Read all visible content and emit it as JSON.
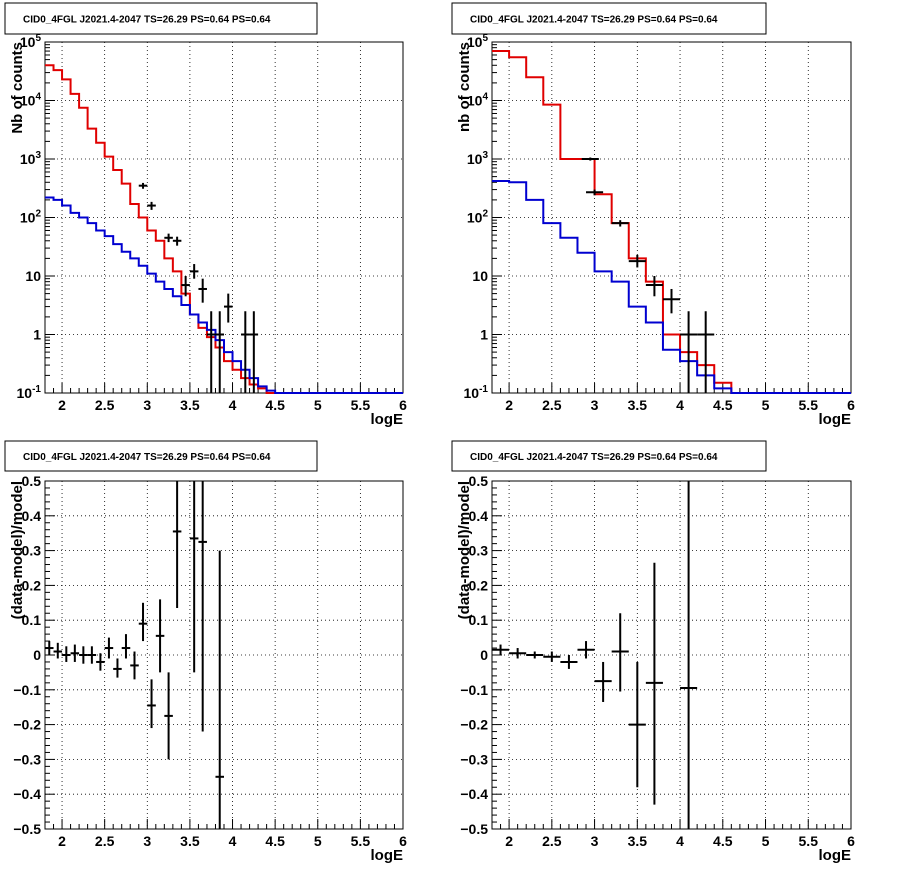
{
  "colors": {
    "data": "#000000",
    "total_model": "#e00000",
    "component_model": "#0000d0",
    "grid": "#000000"
  },
  "chart_data": [
    {
      "type": "line",
      "panel": "top-left",
      "title": "CID0_4FGL J2021.4-2047 TS=26.29 PS=0.64 PS=0.64",
      "xlabel": "logE",
      "ylabel": "Nb of counts",
      "xlim": [
        1.8,
        6.0
      ],
      "ylim": [
        0.1,
        100000
      ],
      "ylog": true,
      "grid": true,
      "xticks": [
        {
          "v": 2,
          "t": "2"
        },
        {
          "v": 2.5,
          "t": "2.5"
        },
        {
          "v": 3,
          "t": "3"
        },
        {
          "v": 3.5,
          "t": "3.5"
        },
        {
          "v": 4,
          "t": "4"
        },
        {
          "v": 4.5,
          "t": "4.5"
        },
        {
          "v": 5,
          "t": "5"
        },
        {
          "v": 5.5,
          "t": "5.5"
        },
        {
          "v": 6,
          "t": "6"
        }
      ],
      "yticks": [
        {
          "v": 0.1,
          "t": "10^-1"
        },
        {
          "v": 1,
          "t": "1"
        },
        {
          "v": 10,
          "t": "10"
        },
        {
          "v": 100,
          "t": "10^2"
        },
        {
          "v": 1000,
          "t": "10^3"
        },
        {
          "v": 10000,
          "t": "10^4"
        },
        {
          "v": 100000,
          "t": "10^5"
        }
      ],
      "step_series": [
        {
          "color": "#e00000",
          "edges": [
            1.8,
            1.9,
            2.0,
            2.1,
            2.2,
            2.3,
            2.4,
            2.5,
            2.6,
            2.7,
            2.8,
            2.9,
            3.0,
            3.1,
            3.2,
            3.3,
            3.4,
            3.5,
            3.6,
            3.7,
            3.8,
            3.9,
            4.0,
            4.1,
            4.2,
            4.3,
            4.4,
            4.5,
            6.0
          ],
          "values": [
            40000,
            33000,
            23000,
            13000,
            7500,
            3300,
            1900,
            1100,
            650,
            380,
            170,
            100,
            60,
            40,
            20,
            12,
            5,
            2.2,
            1.3,
            0.9,
            0.6,
            0.35,
            0.25,
            0.18,
            0.14,
            0.12,
            0.1,
            0.1
          ]
        },
        {
          "color": "#0000d0",
          "edges": [
            1.8,
            1.9,
            2.0,
            2.1,
            2.2,
            2.3,
            2.4,
            2.5,
            2.6,
            2.7,
            2.8,
            2.9,
            3.0,
            3.1,
            3.2,
            3.3,
            3.4,
            3.5,
            3.6,
            3.7,
            3.8,
            3.9,
            4.0,
            4.1,
            4.2,
            4.3,
            4.4,
            4.5,
            6.0
          ],
          "values": [
            220,
            200,
            160,
            120,
            100,
            80,
            60,
            48,
            35,
            26,
            20,
            15,
            11,
            8,
            6,
            4.5,
            3.2,
            2.2,
            1.6,
            1.2,
            0.8,
            0.5,
            0.35,
            0.25,
            0.18,
            0.13,
            0.11,
            0.1
          ]
        }
      ],
      "points": [
        {
          "x": 2.95,
          "y": 350,
          "xerr": 0.05,
          "ylo": 310,
          "yhi": 390
        },
        {
          "x": 3.05,
          "y": 160,
          "xerr": 0.05,
          "ylo": 135,
          "yhi": 185
        },
        {
          "x": 3.25,
          "y": 45,
          "xerr": 0.05,
          "ylo": 38,
          "yhi": 53
        },
        {
          "x": 3.35,
          "y": 40,
          "xerr": 0.05,
          "ylo": 33,
          "yhi": 47
        },
        {
          "x": 3.45,
          "y": 7,
          "xerr": 0.05,
          "ylo": 4.5,
          "yhi": 10
        },
        {
          "x": 3.55,
          "y": 12,
          "xerr": 0.05,
          "ylo": 9,
          "yhi": 16
        },
        {
          "x": 3.65,
          "y": 6,
          "xerr": 0.05,
          "ylo": 3.5,
          "yhi": 9
        },
        {
          "x": 3.75,
          "y": 1,
          "xerr": 0.05,
          "ylo": 0.1,
          "yhi": 2.5
        },
        {
          "x": 3.85,
          "y": 1,
          "xerr": 0.05,
          "ylo": 0.1,
          "yhi": 2.5
        },
        {
          "x": 3.95,
          "y": 3,
          "xerr": 0.05,
          "ylo": 1.6,
          "yhi": 5
        },
        {
          "x": 4.15,
          "y": 1,
          "xerr": 0.05,
          "ylo": 0.1,
          "yhi": 2.5
        },
        {
          "x": 4.25,
          "y": 1,
          "xerr": 0.05,
          "ylo": 0.1,
          "yhi": 2.5
        }
      ]
    },
    {
      "type": "line",
      "panel": "top-right",
      "title": "CID0_4FGL J2021.4-2047 TS=26.29 PS=0.64 PS=0.64",
      "xlabel": "logE",
      "ylabel": "nb of counts",
      "xlim": [
        1.8,
        6.0
      ],
      "ylim": [
        0.1,
        100000
      ],
      "ylog": true,
      "grid": true,
      "xticks": [
        {
          "v": 2,
          "t": "2"
        },
        {
          "v": 2.5,
          "t": "2.5"
        },
        {
          "v": 3,
          "t": "3"
        },
        {
          "v": 3.5,
          "t": "3.5"
        },
        {
          "v": 4,
          "t": "4"
        },
        {
          "v": 4.5,
          "t": "4.5"
        },
        {
          "v": 5,
          "t": "5"
        },
        {
          "v": 5.5,
          "t": "5.5"
        },
        {
          "v": 6,
          "t": "6"
        }
      ],
      "yticks": [
        {
          "v": 0.1,
          "t": "10^-1"
        },
        {
          "v": 1,
          "t": "1"
        },
        {
          "v": 10,
          "t": "10"
        },
        {
          "v": 100,
          "t": "10^2"
        },
        {
          "v": 1000,
          "t": "10^3"
        },
        {
          "v": 10000,
          "t": "10^4"
        },
        {
          "v": 100000,
          "t": "10^5"
        }
      ],
      "step_series": [
        {
          "color": "#e00000",
          "edges": [
            1.8,
            2.0,
            2.2,
            2.4,
            2.6,
            2.8,
            3.0,
            3.2,
            3.4,
            3.6,
            3.8,
            4.0,
            4.2,
            4.4,
            4.6,
            6.0
          ],
          "values": [
            70000,
            55000,
            25000,
            8500,
            1000,
            1000,
            250,
            80,
            20,
            8,
            1,
            0.5,
            0.3,
            0.15,
            0.1
          ]
        },
        {
          "color": "#0000d0",
          "edges": [
            1.8,
            2.0,
            2.2,
            2.4,
            2.6,
            2.8,
            3.0,
            3.2,
            3.4,
            3.6,
            3.8,
            4.0,
            4.2,
            4.4,
            4.6,
            6.0
          ],
          "values": [
            420,
            400,
            200,
            80,
            45,
            25,
            12,
            8,
            3,
            1.6,
            0.55,
            0.35,
            0.2,
            0.12,
            0.1
          ]
        }
      ],
      "points": [
        {
          "x": 2.95,
          "y": 1000,
          "xerr": 0.1,
          "ylo": 940,
          "yhi": 1060
        },
        {
          "x": 3.0,
          "y": 270,
          "xerr": 0.1,
          "ylo": 240,
          "yhi": 300
        },
        {
          "x": 3.3,
          "y": 80,
          "xerr": 0.1,
          "ylo": 70,
          "yhi": 90
        },
        {
          "x": 3.5,
          "y": 18,
          "xerr": 0.1,
          "ylo": 14,
          "yhi": 23
        },
        {
          "x": 3.7,
          "y": 7,
          "xerr": 0.1,
          "ylo": 4.5,
          "yhi": 10
        },
        {
          "x": 3.9,
          "y": 4,
          "xerr": 0.1,
          "ylo": 2.3,
          "yhi": 6
        },
        {
          "x": 4.1,
          "y": 1,
          "xerr": 0.1,
          "ylo": 0.1,
          "yhi": 2.5
        },
        {
          "x": 4.3,
          "y": 1,
          "xerr": 0.1,
          "ylo": 0.1,
          "yhi": 2.5
        }
      ]
    },
    {
      "type": "scatter",
      "panel": "bottom-left",
      "title": "CID0_4FGL J2021.4-2047 TS=26.29 PS=0.64 PS=0.64",
      "xlabel": "logE",
      "ylabel": "(data-model)/model",
      "xlim": [
        1.8,
        6.0
      ],
      "ylim": [
        -0.5,
        0.5
      ],
      "ylog": false,
      "grid": true,
      "xticks": [
        {
          "v": 2,
          "t": "2"
        },
        {
          "v": 2.5,
          "t": "2.5"
        },
        {
          "v": 3,
          "t": "3"
        },
        {
          "v": 3.5,
          "t": "3.5"
        },
        {
          "v": 4,
          "t": "4"
        },
        {
          "v": 4.5,
          "t": "4.5"
        },
        {
          "v": 5,
          "t": "5"
        },
        {
          "v": 5.5,
          "t": "5.5"
        },
        {
          "v": 6,
          "t": "6"
        }
      ],
      "yticks": [
        {
          "v": -0.5,
          "t": "−0.5"
        },
        {
          "v": -0.4,
          "t": "−0.4"
        },
        {
          "v": -0.3,
          "t": "−0.3"
        },
        {
          "v": -0.2,
          "t": "−0.2"
        },
        {
          "v": -0.1,
          "t": "−0.1"
        },
        {
          "v": 0,
          "t": "0"
        },
        {
          "v": 0.1,
          "t": "0.1"
        },
        {
          "v": 0.2,
          "t": "0.2"
        },
        {
          "v": 0.3,
          "t": "0.3"
        },
        {
          "v": 0.4,
          "t": "0.4"
        },
        {
          "v": 0.5,
          "t": "0.5"
        }
      ],
      "step_series": [],
      "points": [
        {
          "x": 1.85,
          "y": 0.02,
          "xerr": 0.05,
          "ylo": 0.0,
          "yhi": 0.04
        },
        {
          "x": 1.95,
          "y": 0.01,
          "xerr": 0.05,
          "ylo": -0.01,
          "yhi": 0.035
        },
        {
          "x": 2.05,
          "y": 0.0,
          "xerr": 0.05,
          "ylo": -0.02,
          "yhi": 0.025
        },
        {
          "x": 2.15,
          "y": 0.005,
          "xerr": 0.05,
          "ylo": -0.02,
          "yhi": 0.03
        },
        {
          "x": 2.25,
          "y": 0.0,
          "xerr": 0.05,
          "ylo": -0.025,
          "yhi": 0.025
        },
        {
          "x": 2.35,
          "y": 0.0,
          "xerr": 0.05,
          "ylo": -0.025,
          "yhi": 0.025
        },
        {
          "x": 2.45,
          "y": -0.02,
          "xerr": 0.05,
          "ylo": -0.045,
          "yhi": 0.005
        },
        {
          "x": 2.55,
          "y": 0.02,
          "xerr": 0.05,
          "ylo": -0.01,
          "yhi": 0.05
        },
        {
          "x": 2.65,
          "y": -0.04,
          "xerr": 0.05,
          "ylo": -0.065,
          "yhi": -0.01
        },
        {
          "x": 2.75,
          "y": 0.02,
          "xerr": 0.05,
          "ylo": -0.01,
          "yhi": 0.06
        },
        {
          "x": 2.85,
          "y": -0.03,
          "xerr": 0.05,
          "ylo": -0.07,
          "yhi": 0.01
        },
        {
          "x": 2.95,
          "y": 0.09,
          "xerr": 0.05,
          "ylo": 0.04,
          "yhi": 0.15
        },
        {
          "x": 3.05,
          "y": -0.145,
          "xerr": 0.05,
          "ylo": -0.21,
          "yhi": -0.07
        },
        {
          "x": 3.15,
          "y": 0.055,
          "xerr": 0.05,
          "ylo": -0.05,
          "yhi": 0.16
        },
        {
          "x": 3.25,
          "y": -0.175,
          "xerr": 0.05,
          "ylo": -0.3,
          "yhi": -0.05
        },
        {
          "x": 3.35,
          "y": 0.355,
          "xerr": 0.05,
          "ylo": 0.135,
          "yhi": 0.5
        },
        {
          "x": 3.55,
          "y": 0.335,
          "xerr": 0.05,
          "ylo": -0.05,
          "yhi": 0.5
        },
        {
          "x": 3.65,
          "y": 0.325,
          "xerr": 0.05,
          "ylo": -0.22,
          "yhi": 0.5
        },
        {
          "x": 3.85,
          "y": -0.35,
          "xerr": 0.05,
          "ylo": -0.5,
          "yhi": 0.3
        }
      ]
    },
    {
      "type": "scatter",
      "panel": "bottom-right",
      "title": "CID0_4FGL J2021.4-2047 TS=26.29 PS=0.64 PS=0.64",
      "xlabel": "logE",
      "ylabel": "(data-model)/model",
      "xlim": [
        1.8,
        6.0
      ],
      "ylim": [
        -0.5,
        0.5
      ],
      "ylog": false,
      "grid": true,
      "xticks": [
        {
          "v": 2,
          "t": "2"
        },
        {
          "v": 2.5,
          "t": "2.5"
        },
        {
          "v": 3,
          "t": "3"
        },
        {
          "v": 3.5,
          "t": "3.5"
        },
        {
          "v": 4,
          "t": "4"
        },
        {
          "v": 4.5,
          "t": "4.5"
        },
        {
          "v": 5,
          "t": "5"
        },
        {
          "v": 5.5,
          "t": "5.5"
        },
        {
          "v": 6,
          "t": "6"
        }
      ],
      "yticks": [
        {
          "v": -0.5,
          "t": "−0.5"
        },
        {
          "v": -0.4,
          "t": "−0.4"
        },
        {
          "v": -0.3,
          "t": "−0.3"
        },
        {
          "v": -0.2,
          "t": "−0.2"
        },
        {
          "v": -0.1,
          "t": "−0.1"
        },
        {
          "v": 0,
          "t": "0"
        },
        {
          "v": 0.1,
          "t": "0.1"
        },
        {
          "v": 0.2,
          "t": "0.2"
        },
        {
          "v": 0.3,
          "t": "0.3"
        },
        {
          "v": 0.4,
          "t": "0.4"
        },
        {
          "v": 0.5,
          "t": "0.5"
        }
      ],
      "step_series": [],
      "points": [
        {
          "x": 1.9,
          "y": 0.015,
          "xerr": 0.1,
          "ylo": 0.0,
          "yhi": 0.03
        },
        {
          "x": 2.1,
          "y": 0.005,
          "xerr": 0.1,
          "ylo": -0.01,
          "yhi": 0.02
        },
        {
          "x": 2.3,
          "y": 0.0,
          "xerr": 0.1,
          "ylo": -0.01,
          "yhi": 0.01
        },
        {
          "x": 2.5,
          "y": -0.005,
          "xerr": 0.1,
          "ylo": -0.02,
          "yhi": 0.01
        },
        {
          "x": 2.7,
          "y": -0.02,
          "xerr": 0.1,
          "ylo": -0.04,
          "yhi": 0.0
        },
        {
          "x": 2.9,
          "y": 0.015,
          "xerr": 0.1,
          "ylo": -0.01,
          "yhi": 0.04
        },
        {
          "x": 3.1,
          "y": -0.075,
          "xerr": 0.1,
          "ylo": -0.135,
          "yhi": -0.02
        },
        {
          "x": 3.3,
          "y": 0.01,
          "xerr": 0.1,
          "ylo": -0.105,
          "yhi": 0.12
        },
        {
          "x": 3.5,
          "y": -0.2,
          "xerr": 0.1,
          "ylo": -0.38,
          "yhi": -0.02
        },
        {
          "x": 3.7,
          "y": -0.08,
          "xerr": 0.1,
          "ylo": -0.43,
          "yhi": 0.265
        },
        {
          "x": 4.1,
          "y": -0.095,
          "xerr": 0.1,
          "ylo": -0.5,
          "yhi": 0.5
        }
      ]
    }
  ]
}
